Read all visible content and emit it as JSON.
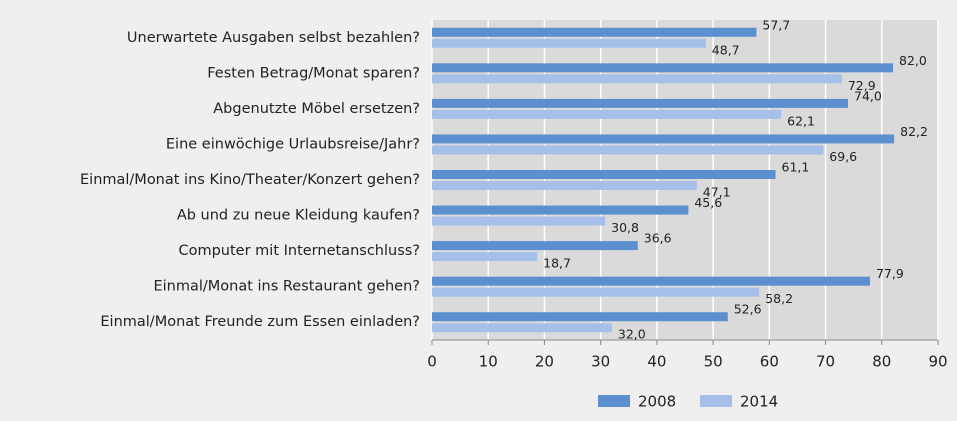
{
  "chart_data": {
    "type": "hbar",
    "categories": [
      "Unerwartete Ausgaben selbst bezahlen?",
      "Festen Betrag/Monat sparen?",
      "Abgenutzte Möbel ersetzen?",
      "Eine einwöchige Urlaubsreise/Jahr?",
      "Einmal/Monat ins Kino/Theater/Konzert gehen?",
      "Ab und zu neue Kleidung kaufen?",
      "Computer mit Internetanschluss?",
      "Einmal/Monat ins Restaurant gehen?",
      "Einmal/Monat Freunde zum Essen einladen?"
    ],
    "series": [
      {
        "name": "2008",
        "color": "#5b8fd0",
        "values": [
          57.7,
          82.0,
          74.0,
          82.2,
          61.1,
          45.6,
          36.6,
          77.9,
          52.6
        ],
        "value_labels": [
          "57,7",
          "82,0",
          "74,0",
          "82,2",
          "61,1",
          "45,6",
          "36,6",
          "77,9",
          "52,6"
        ]
      },
      {
        "name": "2014",
        "color": "#a5bfe8",
        "values": [
          48.7,
          72.9,
          62.1,
          69.6,
          47.1,
          30.8,
          18.7,
          58.2,
          32.0
        ],
        "value_labels": [
          "48,7",
          "72,9",
          "62,1",
          "69,6",
          "47,1",
          "30,8",
          "18,7",
          "58,2",
          "32,0"
        ]
      }
    ],
    "xlim": [
      0,
      90
    ],
    "xticks": [
      0,
      10,
      20,
      30,
      40,
      50,
      60,
      70,
      80,
      90
    ],
    "grid": true,
    "legend": "bottom"
  }
}
